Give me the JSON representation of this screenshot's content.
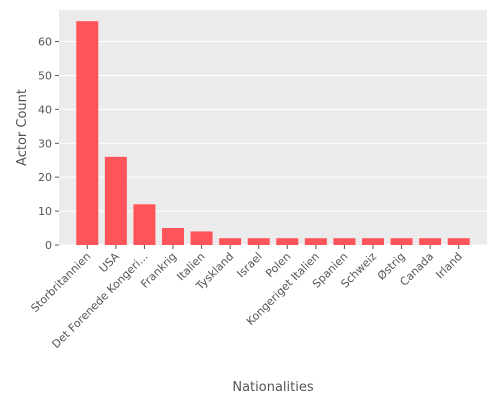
{
  "chart_data": {
    "type": "bar",
    "title": "",
    "xlabel": "Nationalities",
    "ylabel": "Actor Count",
    "categories": [
      "Storbritannien",
      "USA",
      "Det Forenede Kongeri...",
      "Frankrig",
      "Italien",
      "Tyskland",
      "Israel",
      "Polen",
      "Kongeriget Italien",
      "Spanien",
      "Schweiz",
      "Østrig",
      "Canada",
      "Irland"
    ],
    "values": [
      66,
      26,
      12,
      5,
      4,
      2,
      2,
      2,
      2,
      2,
      2,
      2,
      2,
      2
    ],
    "ylim": [
      0,
      69.3
    ],
    "yticks": [
      0,
      10,
      20,
      30,
      40,
      50,
      60
    ],
    "grid": true,
    "legend": "none",
    "colors": {
      "bar": "#ff5459",
      "panel": "#ebebeb",
      "grid": "#ffffff",
      "text": "#555555"
    }
  }
}
